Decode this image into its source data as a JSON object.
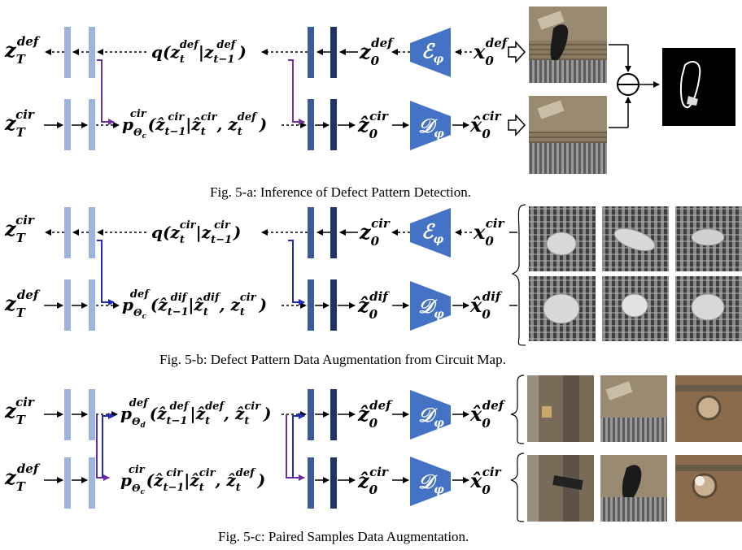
{
  "panel_a": {
    "caption": "Fig. 5-a: Inference of Defect Pattern Detection.",
    "top": {
      "left_var": "z",
      "left_sub": "T",
      "left_sup": "def",
      "process_pre": "q(z",
      "process_pre_sub": "t",
      "process_pre_sup": "def",
      "process_mid": "|z",
      "process_mid_sub": "t−1",
      "process_mid_sup": "def",
      "process_end": ")",
      "latent": "z",
      "latent_sub": "0",
      "latent_sup": "def",
      "module": "ℰ",
      "module_sub": "φ",
      "input": "x",
      "input_sub": "0",
      "input_sup": "def"
    },
    "bottom": {
      "left_var": "z",
      "left_sub": "T",
      "left_sup": "cir",
      "process": "p",
      "process_sub": "Θ",
      "process_subsub": "c",
      "process_sup": "cir",
      "args": "(ẑ",
      "args_sub": "t−1",
      "args_sup": "cir",
      "args2": "|ẑ",
      "args2_sub": "t",
      "args2_sup": "cir",
      "args3": ", z",
      "args3_sub": "t",
      "args3_sup": "def",
      "args_end": ")",
      "latent": "ẑ",
      "latent_sub": "0",
      "latent_sup": "cir",
      "module": "𝒟",
      "module_sub": "φ",
      "output": "x̂",
      "output_sub": "0",
      "output_sup": "cir"
    }
  },
  "panel_b": {
    "caption": "Fig. 5-b: Defect Pattern Data Augmentation from Circuit Map.",
    "top": {
      "left_var": "z",
      "left_sub": "T",
      "left_sup": "cir",
      "process_pre": "q(z",
      "process_pre_sub": "t",
      "process_pre_sup": "cir",
      "process_mid": "|z",
      "process_mid_sub": "t−1",
      "process_mid_sup": "cir",
      "process_end": ")",
      "latent": "z",
      "latent_sub": "0",
      "latent_sup": "cir",
      "module": "ℰ",
      "module_sub": "φ",
      "input": "x",
      "input_sub": "0",
      "input_sup": "cir"
    },
    "bottom": {
      "left_var": "z",
      "left_sub": "T",
      "left_sup": "def",
      "process": "p",
      "process_sub": "Θ",
      "process_subsub": "c",
      "process_sup": "def",
      "args": "(ẑ",
      "args_sub": "t−1",
      "args_sup": "dif",
      "args2": "|ẑ",
      "args2_sub": "t",
      "args2_sup": "dif",
      "args3": ", z",
      "args3_sub": "t",
      "args3_sup": "cir",
      "args_end": ")",
      "latent": "ẑ",
      "latent_sub": "0",
      "latent_sup": "dif",
      "module": "𝒟",
      "module_sub": "φ",
      "output": "x̂",
      "output_sub": "0",
      "output_sup": "dif"
    }
  },
  "panel_c": {
    "caption": "Fig. 5-c: Paired Samples Data Augmentation.",
    "top": {
      "left_var": "z",
      "left_sub": "T",
      "left_sup": "cir",
      "process": "p",
      "process_sub": "Θ",
      "process_subsub": "d",
      "process_sup": "def",
      "args": "(ẑ",
      "args_sub": "t−1",
      "args_sup": "def",
      "args2": "|ẑ",
      "args2_sub": "t",
      "args2_sup": "def",
      "args3": ", ẑ",
      "args3_sub": "t",
      "args3_sup": "cir",
      "args_end": ")",
      "latent": "ẑ",
      "latent_sub": "0",
      "latent_sup": "def",
      "module": "𝒟",
      "module_sub": "φ",
      "output": "x̂",
      "output_sub": "0",
      "output_sup": "def"
    },
    "bottom": {
      "left_var": "z",
      "left_sub": "T",
      "left_sup": "def",
      "process": "p",
      "process_sub": "Θ",
      "process_subsub": "c",
      "process_sup": "cir",
      "args": "(ẑ",
      "args_sub": "t−1",
      "args_sup": "cir",
      "args2": "|ẑ",
      "args2_sub": "t",
      "args2_sup": "cir",
      "args3": ", ẑ",
      "args3_sub": "t",
      "args3_sup": "def",
      "args_end": ")",
      "latent": "ẑ",
      "latent_sub": "0",
      "latent_sup": "cir",
      "module": "𝒟",
      "module_sub": "φ",
      "output": "x̂",
      "output_sub": "0",
      "output_sup": "cir"
    }
  },
  "colors": {
    "light_bar": "#9db3e0",
    "mid_bar": "#3d5a99",
    "dark_bar": "#1f3560",
    "module_fill": "#4472c4",
    "purple_arrow": "#7030a0",
    "blue_arrow": "#1f2bb8",
    "chip_brown": "#8a7560",
    "grid_gray": "#6b6b6b"
  },
  "icons": {
    "subtract": "circle-minus-icon",
    "hollow_arrow": "hollow-arrow-icon"
  }
}
